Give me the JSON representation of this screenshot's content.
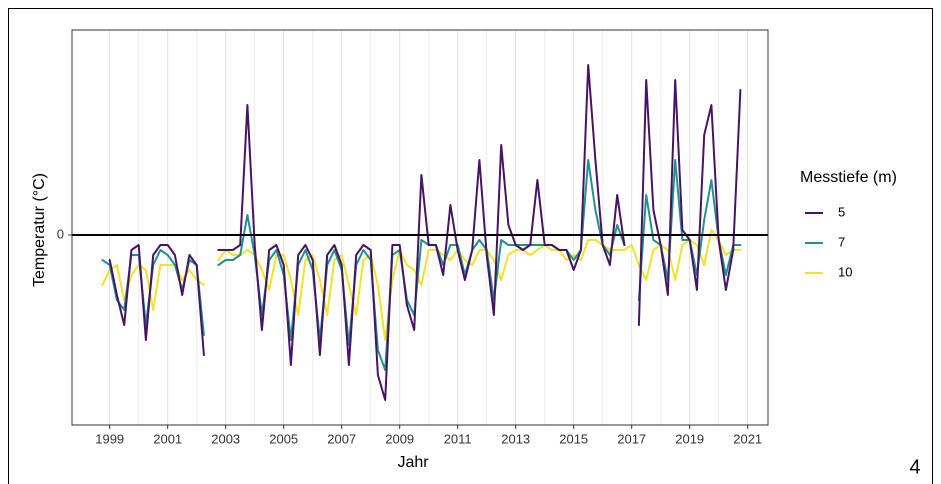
{
  "chart_data": {
    "type": "line",
    "x_label": "Jahr",
    "y_label": "Temperatur (°C)",
    "legend_title": "Messtiefe (m)",
    "page_number": "4",
    "xlim": [
      1997.7,
      2021.7
    ],
    "xticks": [
      1999,
      2001,
      2003,
      2005,
      2007,
      2009,
      2011,
      2013,
      2015,
      2017,
      2019,
      2021
    ],
    "x_minor_ticks": [
      2000,
      2002,
      2004,
      2006,
      2008,
      2010,
      2012,
      2014,
      2016,
      2018,
      2020
    ],
    "ylim": [
      -3.8,
      4.1
    ],
    "yticks": [
      0
    ],
    "grid": true,
    "legend": "right",
    "x": [
      1998.75,
      1999,
      1999.25,
      1999.5,
      1999.75,
      2000,
      2000.25,
      2000.5,
      2000.75,
      2001,
      2001.25,
      2001.5,
      2001.75,
      2002,
      2002.25,
      2002.5,
      2002.75,
      2003,
      2003.25,
      2003.5,
      2003.75,
      2004,
      2004.25,
      2004.5,
      2004.75,
      2005,
      2005.25,
      2005.5,
      2005.75,
      2006,
      2006.25,
      2006.5,
      2006.75,
      2007,
      2007.25,
      2007.5,
      2007.75,
      2008,
      2008.25,
      2008.5,
      2008.75,
      2009,
      2009.25,
      2009.5,
      2009.75,
      2010,
      2010.25,
      2010.5,
      2010.75,
      2011,
      2011.25,
      2011.5,
      2011.75,
      2012,
      2012.25,
      2012.5,
      2012.75,
      2013,
      2013.25,
      2013.5,
      2013.75,
      2014,
      2014.25,
      2014.5,
      2014.75,
      2015,
      2015.25,
      2015.5,
      2015.75,
      2016,
      2016.25,
      2016.5,
      2016.75,
      2017,
      2017.25,
      2017.5,
      2017.75,
      2018,
      2018.25,
      2018.5,
      2018.75,
      2019,
      2019.25,
      2019.5,
      2019.75,
      2020,
      2020.25,
      2020.5,
      2020.75
    ],
    "series": [
      {
        "name": "5",
        "color": "#471465",
        "values": [
          null,
          -0.5,
          -1.2,
          -1.8,
          -0.3,
          -0.2,
          -2.1,
          -0.4,
          -0.2,
          -0.2,
          -0.4,
          -1.2,
          -0.4,
          -0.6,
          -2.4,
          null,
          -0.3,
          -0.3,
          -0.3,
          -0.2,
          2.6,
          -0.2,
          -1.9,
          -0.3,
          -0.2,
          -0.6,
          -2.6,
          -0.4,
          -0.2,
          -0.5,
          -2.4,
          -0.4,
          -0.2,
          -0.6,
          -2.6,
          -0.4,
          -0.2,
          -0.3,
          -2.8,
          -3.3,
          -0.2,
          -0.2,
          -1.4,
          -1.9,
          1.2,
          -0.2,
          -0.2,
          -0.8,
          0.6,
          -0.3,
          -0.9,
          -0.3,
          1.5,
          -0.4,
          -1.6,
          1.8,
          0.2,
          -0.2,
          -0.3,
          -0.2,
          1.1,
          -0.2,
          -0.2,
          -0.3,
          -0.3,
          -0.7,
          -0.3,
          3.4,
          1.5,
          -0.2,
          -0.6,
          0.8,
          -0.2,
          null,
          -1.8,
          3.1,
          0.5,
          -0.2,
          -1.2,
          3.1,
          0.1,
          -0.1,
          -1.1,
          2.0,
          2.6,
          -0.1,
          -1.1,
          -0.3,
          2.9
        ]
      },
      {
        "name": "7",
        "color": "#21918c",
        "values": [
          -0.5,
          -0.6,
          -1.3,
          -1.5,
          -0.4,
          -0.4,
          -1.8,
          -0.6,
          -0.3,
          -0.4,
          -0.6,
          -1.1,
          -0.5,
          -0.6,
          -2.0,
          null,
          -0.6,
          -0.5,
          -0.5,
          -0.4,
          0.4,
          -0.4,
          -1.6,
          -0.5,
          -0.3,
          -0.8,
          -2.1,
          -0.6,
          -0.3,
          -0.7,
          -2.1,
          -0.6,
          -0.3,
          -0.7,
          -2.2,
          -0.6,
          -0.3,
          -0.5,
          -2.3,
          -2.7,
          -0.4,
          -0.3,
          -1.3,
          -1.6,
          -0.1,
          -0.2,
          -0.2,
          -0.6,
          -0.2,
          -0.2,
          -0.8,
          -0.3,
          -0.1,
          -0.3,
          -1.3,
          -0.1,
          -0.2,
          -0.2,
          -0.2,
          -0.2,
          -0.2,
          -0.2,
          -0.2,
          -0.3,
          -0.3,
          -0.5,
          -0.3,
          1.5,
          0.5,
          -0.2,
          -0.4,
          0.2,
          -0.2,
          null,
          -1.3,
          0.8,
          -0.1,
          -0.2,
          -0.9,
          1.5,
          -0.1,
          -0.1,
          -0.8,
          0.3,
          1.1,
          -0.1,
          -0.8,
          -0.2,
          -0.2
        ]
      },
      {
        "name": "10",
        "color": "#f2e22a",
        "values": [
          -1.0,
          -0.7,
          -0.6,
          -1.3,
          -0.8,
          -0.6,
          -0.7,
          -1.5,
          -0.6,
          -0.6,
          -0.6,
          -0.9,
          -0.7,
          -0.9,
          -1.0,
          null,
          -0.5,
          -0.3,
          -0.4,
          -0.4,
          -0.3,
          -0.4,
          -0.7,
          -1.1,
          -0.4,
          -0.4,
          -0.9,
          -1.6,
          -0.5,
          -0.4,
          -0.9,
          -1.6,
          -0.5,
          -0.4,
          -1.0,
          -1.6,
          -0.5,
          -0.4,
          -1.0,
          -2.1,
          -0.9,
          -0.3,
          -0.6,
          -0.7,
          -1.0,
          -0.3,
          -0.3,
          -0.4,
          -0.5,
          -0.3,
          -0.5,
          -0.6,
          -0.3,
          -0.3,
          -0.5,
          -0.9,
          -0.4,
          -0.3,
          -0.3,
          -0.4,
          -0.3,
          -0.2,
          -0.3,
          -0.3,
          -0.5,
          -0.4,
          -0.5,
          -0.1,
          -0.1,
          -0.2,
          -0.3,
          -0.3,
          -0.3,
          -0.2,
          -0.6,
          -0.9,
          -0.3,
          -0.2,
          -0.3,
          -0.9,
          -0.2,
          -0.1,
          -0.2,
          -0.6,
          0.1,
          -0.1,
          -0.4,
          -0.3,
          -0.3
        ]
      }
    ]
  }
}
